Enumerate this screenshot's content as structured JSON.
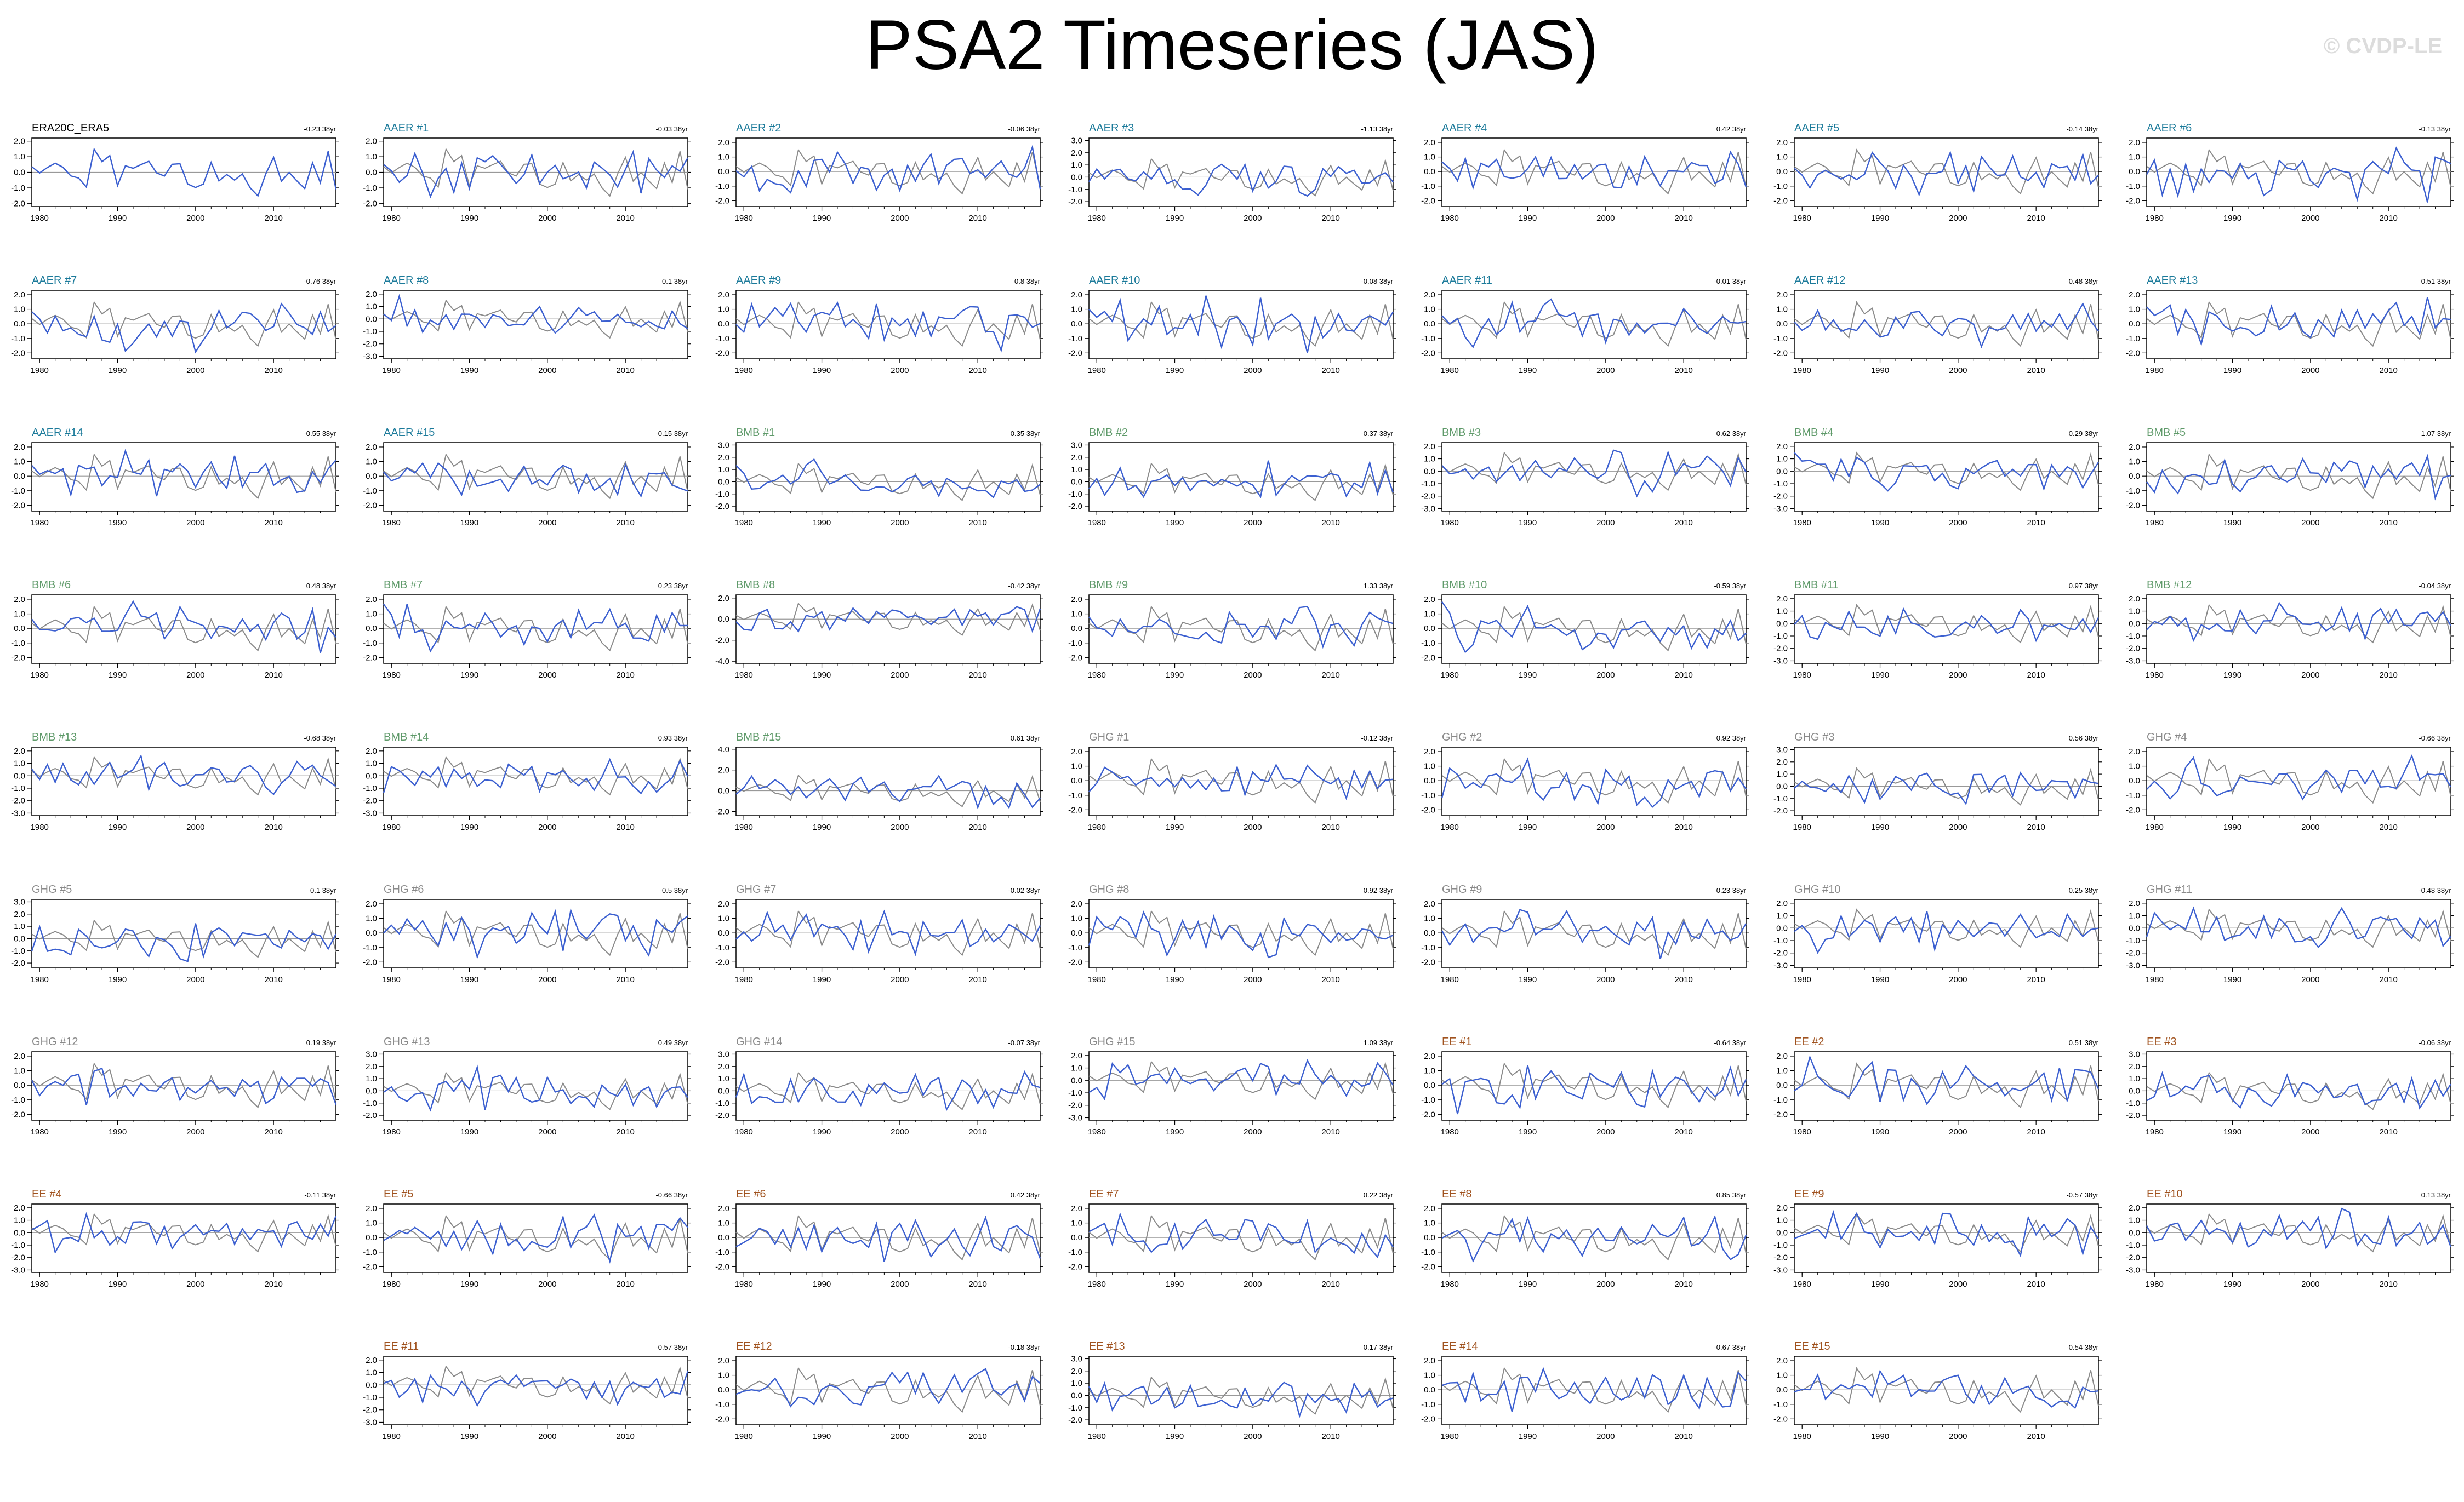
{
  "header": {
    "title": "PSA2 Timeseries (JAS)",
    "watermark": "© CVDP-LE"
  },
  "colors": {
    "ensemble": "#3b5fd0",
    "reference": "#8a8a8a",
    "AAER": "#1b7a9a",
    "BMB": "#5f9a6a",
    "GHG": "#8a8a8a",
    "EE": "#a0521e",
    "obs": "#000000"
  },
  "chart_data": {
    "type": "line",
    "layout_note_columns": 7,
    "x_ticks": [
      "1980",
      "1990",
      "2000",
      "2010"
    ],
    "x_range": [
      1979,
      2018
    ],
    "panels": [
      {
        "title": "ERA20C_ERA5",
        "group": "obs",
        "trend": "-0.23 38yr",
        "yticks": [
          "2.0",
          "1.0",
          "0.0",
          "-1.0",
          "-2.0"
        ],
        "ylim": [
          -2.2,
          2.2
        ]
      },
      {
        "title": "AAER #1",
        "group": "AAER",
        "trend": "-0.03 38yr",
        "yticks": [
          "2.0",
          "1.0",
          "0.0",
          "-1.0",
          "-2.0"
        ],
        "ylim": [
          -2.2,
          2.2
        ]
      },
      {
        "title": "AAER #2",
        "group": "AAER",
        "trend": "-0.06 38yr",
        "yticks": [
          "2.0",
          "1.0",
          "0.0",
          "-1.0",
          "-2.0"
        ],
        "ylim": [
          -2.4,
          2.3
        ]
      },
      {
        "title": "AAER #3",
        "group": "AAER",
        "trend": "-1.13 38yr",
        "yticks": [
          "3.0",
          "2.0",
          "1.0",
          "0.0",
          "-1.0",
          "-2.0"
        ],
        "ylim": [
          -2.4,
          3.2
        ]
      },
      {
        "title": "AAER #4",
        "group": "AAER",
        "trend": "0.42 38yr",
        "yticks": [
          "2.0",
          "1.0",
          "0.0",
          "-1.0",
          "-2.0"
        ],
        "ylim": [
          -2.4,
          2.3
        ]
      },
      {
        "title": "AAER #5",
        "group": "AAER",
        "trend": "-0.14 38yr",
        "yticks": [
          "2.0",
          "1.0",
          "0.0",
          "-1.0",
          "-2.0"
        ],
        "ylim": [
          -2.4,
          2.3
        ]
      },
      {
        "title": "AAER #6",
        "group": "AAER",
        "trend": "-0.13 38yr",
        "yticks": [
          "2.0",
          "1.0",
          "0.0",
          "-1.0",
          "-2.0"
        ],
        "ylim": [
          -2.4,
          2.3
        ]
      },
      {
        "title": "AAER #7",
        "group": "AAER",
        "trend": "-0.76 38yr",
        "yticks": [
          "2.0",
          "1.0",
          "0.0",
          "-1.0",
          "-2.0"
        ],
        "ylim": [
          -2.4,
          2.3
        ]
      },
      {
        "title": "AAER #8",
        "group": "AAER",
        "trend": "0.1 38yr",
        "yticks": [
          "2.0",
          "1.0",
          "0.0",
          "-1.0",
          "-2.0",
          "-3.0"
        ],
        "ylim": [
          -3.2,
          2.3
        ]
      },
      {
        "title": "AAER #9",
        "group": "AAER",
        "trend": "0.8 38yr",
        "yticks": [
          "2.0",
          "1.0",
          "0.0",
          "-1.0",
          "-2.0"
        ],
        "ylim": [
          -2.4,
          2.3
        ]
      },
      {
        "title": "AAER #10",
        "group": "AAER",
        "trend": "-0.08 38yr",
        "yticks": [
          "2.0",
          "1.0",
          "0.0",
          "-1.0",
          "-2.0"
        ],
        "ylim": [
          -2.4,
          2.3
        ]
      },
      {
        "title": "AAER #11",
        "group": "AAER",
        "trend": "-0.01 38yr",
        "yticks": [
          "2.0",
          "1.0",
          "0.0",
          "-1.0",
          "-2.0"
        ],
        "ylim": [
          -2.4,
          2.3
        ]
      },
      {
        "title": "AAER #12",
        "group": "AAER",
        "trend": "-0.48 38yr",
        "yticks": [
          "2.0",
          "1.0",
          "0.0",
          "-1.0",
          "-2.0"
        ],
        "ylim": [
          -2.4,
          2.3
        ]
      },
      {
        "title": "AAER #13",
        "group": "AAER",
        "trend": "0.51 38yr",
        "yticks": [
          "2.0",
          "1.0",
          "0.0",
          "-1.0",
          "-2.0"
        ],
        "ylim": [
          -2.4,
          2.3
        ]
      },
      {
        "title": "AAER #14",
        "group": "AAER",
        "trend": "-0.55 38yr",
        "yticks": [
          "2.0",
          "1.0",
          "0.0",
          "-1.0",
          "-2.0"
        ],
        "ylim": [
          -2.4,
          2.3
        ]
      },
      {
        "title": "AAER #15",
        "group": "AAER",
        "trend": "-0.15 38yr",
        "yticks": [
          "2.0",
          "1.0",
          "0.0",
          "-1.0",
          "-2.0"
        ],
        "ylim": [
          -2.4,
          2.3
        ]
      },
      {
        "title": "BMB #1",
        "group": "BMB",
        "trend": "0.35 38yr",
        "yticks": [
          "3.0",
          "2.0",
          "1.0",
          "0.0",
          "-1.0",
          "-2.0"
        ],
        "ylim": [
          -2.4,
          3.2
        ]
      },
      {
        "title": "BMB #2",
        "group": "BMB",
        "trend": "-0.37 38yr",
        "yticks": [
          "3.0",
          "2.0",
          "1.0",
          "0.0",
          "-1.0",
          "-2.0"
        ],
        "ylim": [
          -2.4,
          3.2
        ]
      },
      {
        "title": "BMB #3",
        "group": "BMB",
        "trend": "0.62 38yr",
        "yticks": [
          "2.0",
          "1.0",
          "0.0",
          "-1.0",
          "-2.0",
          "-3.0"
        ],
        "ylim": [
          -3.2,
          2.3
        ]
      },
      {
        "title": "BMB #4",
        "group": "BMB",
        "trend": "0.29 38yr",
        "yticks": [
          "2.0",
          "1.0",
          "0.0",
          "-1.0",
          "-2.0",
          "-3.0"
        ],
        "ylim": [
          -3.2,
          2.3
        ]
      },
      {
        "title": "BMB #5",
        "group": "BMB",
        "trend": "1.07 38yr",
        "yticks": [
          "2.0",
          "1.0",
          "0.0",
          "-1.0",
          "-2.0"
        ],
        "ylim": [
          -2.4,
          2.3
        ]
      },
      {
        "title": "BMB #6",
        "group": "BMB",
        "trend": "0.48 38yr",
        "yticks": [
          "2.0",
          "1.0",
          "0.0",
          "-1.0",
          "-2.0"
        ],
        "ylim": [
          -2.4,
          2.3
        ]
      },
      {
        "title": "BMB #7",
        "group": "BMB",
        "trend": "0.23 38yr",
        "yticks": [
          "2.0",
          "1.0",
          "0.0",
          "-1.0",
          "-2.0"
        ],
        "ylim": [
          -2.4,
          2.3
        ]
      },
      {
        "title": "BMB #8",
        "group": "BMB",
        "trend": "-0.42 38yr",
        "yticks": [
          "2.0",
          "0.0",
          "-2.0",
          "-4.0"
        ],
        "ylim": [
          -4.2,
          2.3
        ]
      },
      {
        "title": "BMB #9",
        "group": "BMB",
        "trend": "1.33 38yr",
        "yticks": [
          "2.0",
          "1.0",
          "0.0",
          "-1.0",
          "-2.0"
        ],
        "ylim": [
          -2.4,
          2.3
        ]
      },
      {
        "title": "BMB #10",
        "group": "BMB",
        "trend": "-0.59 38yr",
        "yticks": [
          "2.0",
          "1.0",
          "0.0",
          "-1.0",
          "-2.0"
        ],
        "ylim": [
          -2.4,
          2.3
        ]
      },
      {
        "title": "BMB #11",
        "group": "BMB",
        "trend": "0.97 38yr",
        "yticks": [
          "2.0",
          "1.0",
          "0.0",
          "-1.0",
          "-2.0",
          "-3.0"
        ],
        "ylim": [
          -3.2,
          2.3
        ]
      },
      {
        "title": "BMB #12",
        "group": "BMB",
        "trend": "-0.04 38yr",
        "yticks": [
          "2.0",
          "1.0",
          "0.0",
          "-1.0",
          "-2.0",
          "-3.0"
        ],
        "ylim": [
          -3.2,
          2.3
        ]
      },
      {
        "title": "BMB #13",
        "group": "BMB",
        "trend": "-0.68 38yr",
        "yticks": [
          "2.0",
          "1.0",
          "0.0",
          "-1.0",
          "-2.0",
          "-3.0"
        ],
        "ylim": [
          -3.2,
          2.3
        ]
      },
      {
        "title": "BMB #14",
        "group": "BMB",
        "trend": "0.93 38yr",
        "yticks": [
          "2.0",
          "1.0",
          "0.0",
          "-1.0",
          "-2.0",
          "-3.0"
        ],
        "ylim": [
          -3.2,
          2.3
        ]
      },
      {
        "title": "BMB #15",
        "group": "BMB",
        "trend": "0.61 38yr",
        "yticks": [
          "4.0",
          "2.0",
          "0.0",
          "-2.0"
        ],
        "ylim": [
          -2.4,
          4.2
        ]
      },
      {
        "title": "GHG #1",
        "group": "GHG",
        "trend": "-0.12 38yr",
        "yticks": [
          "2.0",
          "1.0",
          "0.0",
          "-1.0",
          "-2.0"
        ],
        "ylim": [
          -2.4,
          2.3
        ]
      },
      {
        "title": "GHG #2",
        "group": "GHG",
        "trend": "0.92 38yr",
        "yticks": [
          "2.0",
          "1.0",
          "0.0",
          "-1.0",
          "-2.0"
        ],
        "ylim": [
          -2.4,
          2.3
        ]
      },
      {
        "title": "GHG #3",
        "group": "GHG",
        "trend": "0.56 38yr",
        "yticks": [
          "3.0",
          "2.0",
          "1.0",
          "0.0",
          "-1.0",
          "-2.0"
        ],
        "ylim": [
          -2.4,
          3.2
        ]
      },
      {
        "title": "GHG #4",
        "group": "GHG",
        "trend": "-0.66 38yr",
        "yticks": [
          "2.0",
          "1.0",
          "0.0",
          "-1.0",
          "-2.0"
        ],
        "ylim": [
          -2.4,
          2.3
        ]
      },
      {
        "title": "GHG #5",
        "group": "GHG",
        "trend": "0.1 38yr",
        "yticks": [
          "3.0",
          "2.0",
          "1.0",
          "0.0",
          "-1.0",
          "-2.0"
        ],
        "ylim": [
          -2.4,
          3.2
        ]
      },
      {
        "title": "GHG #6",
        "group": "GHG",
        "trend": "-0.5 38yr",
        "yticks": [
          "2.0",
          "1.0",
          "0.0",
          "-1.0",
          "-2.0"
        ],
        "ylim": [
          -2.4,
          2.3
        ]
      },
      {
        "title": "GHG #7",
        "group": "GHG",
        "trend": "-0.02 38yr",
        "yticks": [
          "2.0",
          "1.0",
          "0.0",
          "-1.0",
          "-2.0"
        ],
        "ylim": [
          -2.4,
          2.3
        ]
      },
      {
        "title": "GHG #8",
        "group": "GHG",
        "trend": "0.92 38yr",
        "yticks": [
          "2.0",
          "1.0",
          "0.0",
          "-1.0",
          "-2.0"
        ],
        "ylim": [
          -2.4,
          2.3
        ]
      },
      {
        "title": "GHG #9",
        "group": "GHG",
        "trend": "0.23 38yr",
        "yticks": [
          "2.0",
          "1.0",
          "0.0",
          "-1.0",
          "-2.0"
        ],
        "ylim": [
          -2.4,
          2.3
        ]
      },
      {
        "title": "GHG #10",
        "group": "GHG",
        "trend": "-0.25 38yr",
        "yticks": [
          "2.0",
          "1.0",
          "0.0",
          "-1.0",
          "-2.0",
          "-3.0"
        ],
        "ylim": [
          -3.2,
          2.3
        ]
      },
      {
        "title": "GHG #11",
        "group": "GHG",
        "trend": "-0.48 38yr",
        "yticks": [
          "2.0",
          "1.0",
          "0.0",
          "-1.0",
          "-2.0",
          "-3.0"
        ],
        "ylim": [
          -3.2,
          2.3
        ]
      },
      {
        "title": "GHG #12",
        "group": "GHG",
        "trend": "0.19 38yr",
        "yticks": [
          "2.0",
          "1.0",
          "0.0",
          "-1.0",
          "-2.0"
        ],
        "ylim": [
          -2.4,
          2.3
        ]
      },
      {
        "title": "GHG #13",
        "group": "GHG",
        "trend": "0.49 38yr",
        "yticks": [
          "3.0",
          "2.0",
          "1.0",
          "0.0",
          "-1.0",
          "-2.0"
        ],
        "ylim": [
          -2.4,
          3.2
        ]
      },
      {
        "title": "GHG #14",
        "group": "GHG",
        "trend": "-0.07 38yr",
        "yticks": [
          "3.0",
          "2.0",
          "1.0",
          "0.0",
          "-1.0",
          "-2.0"
        ],
        "ylim": [
          -2.4,
          3.2
        ]
      },
      {
        "title": "GHG #15",
        "group": "GHG",
        "trend": "1.09 38yr",
        "yticks": [
          "2.0",
          "1.0",
          "0.0",
          "-1.0",
          "-2.0",
          "-3.0"
        ],
        "ylim": [
          -3.2,
          2.3
        ]
      },
      {
        "title": "EE #1",
        "group": "EE",
        "trend": "-0.64 38yr",
        "yticks": [
          "2.0",
          "1.0",
          "0.0",
          "-1.0",
          "-2.0"
        ],
        "ylim": [
          -2.4,
          2.3
        ]
      },
      {
        "title": "EE #2",
        "group": "EE",
        "trend": "0.51 38yr",
        "yticks": [
          "2.0",
          "1.0",
          "0.0",
          "-1.0",
          "-2.0"
        ],
        "ylim": [
          -2.4,
          2.3
        ]
      },
      {
        "title": "EE #3",
        "group": "EE",
        "trend": "-0.06 38yr",
        "yticks": [
          "3.0",
          "2.0",
          "1.0",
          "0.0",
          "-1.0",
          "-2.0"
        ],
        "ylim": [
          -2.4,
          3.2
        ]
      },
      {
        "title": "EE #4",
        "group": "EE",
        "trend": "-0.11 38yr",
        "yticks": [
          "2.0",
          "1.0",
          "0.0",
          "-1.0",
          "-2.0",
          "-3.0"
        ],
        "ylim": [
          -3.2,
          2.3
        ]
      },
      {
        "title": "EE #5",
        "group": "EE",
        "trend": "-0.66 38yr",
        "yticks": [
          "2.0",
          "1.0",
          "0.0",
          "-1.0",
          "-2.0"
        ],
        "ylim": [
          -2.4,
          2.3
        ]
      },
      {
        "title": "EE #6",
        "group": "EE",
        "trend": "0.42 38yr",
        "yticks": [
          "2.0",
          "1.0",
          "0.0",
          "-1.0",
          "-2.0"
        ],
        "ylim": [
          -2.4,
          2.3
        ]
      },
      {
        "title": "EE #7",
        "group": "EE",
        "trend": "0.22 38yr",
        "yticks": [
          "2.0",
          "1.0",
          "0.0",
          "-1.0",
          "-2.0"
        ],
        "ylim": [
          -2.4,
          2.3
        ]
      },
      {
        "title": "EE #8",
        "group": "EE",
        "trend": "0.85 38yr",
        "yticks": [
          "2.0",
          "1.0",
          "0.0",
          "-1.0",
          "-2.0"
        ],
        "ylim": [
          -2.4,
          2.3
        ]
      },
      {
        "title": "EE #9",
        "group": "EE",
        "trend": "-0.57 38yr",
        "yticks": [
          "2.0",
          "1.0",
          "0.0",
          "-1.0",
          "-2.0",
          "-3.0"
        ],
        "ylim": [
          -3.2,
          2.3
        ]
      },
      {
        "title": "EE #10",
        "group": "EE",
        "trend": "0.13 38yr",
        "yticks": [
          "2.0",
          "1.0",
          "0.0",
          "-1.0",
          "-2.0",
          "-3.0"
        ],
        "ylim": [
          -3.2,
          2.3
        ]
      },
      {
        "title": "EE #11",
        "group": "EE",
        "trend": "-0.57 38yr",
        "yticks": [
          "2.0",
          "1.0",
          "0.0",
          "-1.0",
          "-2.0",
          "-3.0"
        ],
        "ylim": [
          -3.2,
          2.3
        ]
      },
      {
        "title": "EE #12",
        "group": "EE",
        "trend": "-0.18 38yr",
        "yticks": [
          "2.0",
          "1.0",
          "0.0",
          "-1.0",
          "-2.0"
        ],
        "ylim": [
          -2.4,
          2.3
        ]
      },
      {
        "title": "EE #13",
        "group": "EE",
        "trend": "0.17 38yr",
        "yticks": [
          "3.0",
          "2.0",
          "1.0",
          "0.0",
          "-1.0",
          "-2.0"
        ],
        "ylim": [
          -2.4,
          3.2
        ]
      },
      {
        "title": "EE #14",
        "group": "EE",
        "trend": "-0.67 38yr",
        "yticks": [
          "2.0",
          "1.0",
          "0.0",
          "-1.0",
          "-2.0"
        ],
        "ylim": [
          -2.4,
          2.3
        ]
      },
      {
        "title": "EE #15",
        "group": "EE",
        "trend": "-0.54 38yr",
        "yticks": [
          "2.0",
          "1.0",
          "0.0",
          "-1.0",
          "-2.0"
        ],
        "ylim": [
          -2.4,
          2.3
        ]
      }
    ]
  }
}
